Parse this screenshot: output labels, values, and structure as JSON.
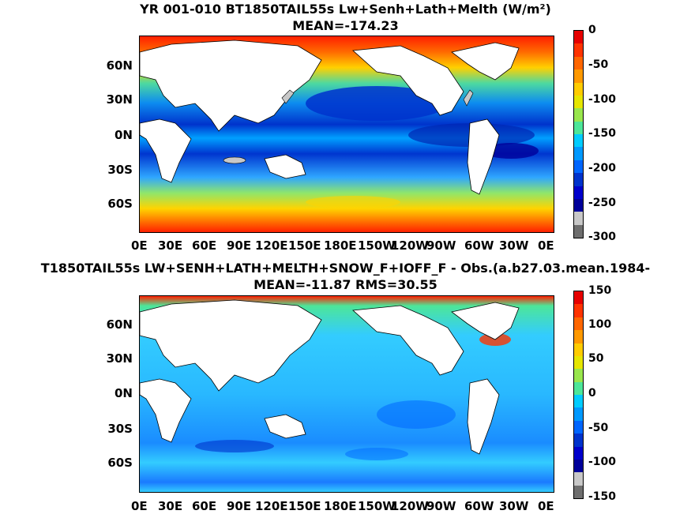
{
  "panels": [
    {
      "title_line1": "YR 001-010 BT1850TAIL55s Lw+Senh+Lath+Melth (W/m²)",
      "title_line2": "MEAN=-174.23",
      "lat_labels": [
        "60N",
        "30N",
        "0N",
        "30S",
        "60S"
      ],
      "lon_labels": [
        "0E",
        "30E",
        "60E",
        "90E",
        "120E",
        "150E",
        "180E",
        "150W",
        "120W",
        "90W",
        "60W",
        "30W",
        "0E"
      ],
      "colorbar": {
        "labels": [
          "0",
          "-50",
          "-100",
          "-150",
          "-200",
          "-250",
          "-300"
        ],
        "colors": [
          "#e60000",
          "#ff3300",
          "#ff6600",
          "#ff9900",
          "#ffcc00",
          "#e6e600",
          "#99e64d",
          "#4de699",
          "#00ccff",
          "#0099ff",
          "#0066ff",
          "#0033cc",
          "#0000cc",
          "#00009a",
          "#c8c8c8",
          "#6e6e6e"
        ]
      }
    },
    {
      "title_line1": "T1850TAIL55s LW+SENH+LATH+MELTH+SNOW_F+IOFF_F - Obs.(a.b27.03.mean.1984-",
      "title_line2": "MEAN=-11.87 RMS=30.55",
      "lat_labels": [
        "60N",
        "30N",
        "0N",
        "30S",
        "60S"
      ],
      "lon_labels": [
        "0E",
        "30E",
        "60E",
        "90E",
        "120E",
        "150E",
        "180E",
        "150W",
        "120W",
        "90W",
        "60W",
        "30W",
        "0E"
      ],
      "colorbar": {
        "labels": [
          "150",
          "100",
          "50",
          "0",
          "-50",
          "-100",
          "-150"
        ],
        "colors": [
          "#e60000",
          "#ff3300",
          "#ff6600",
          "#ff9900",
          "#ffcc00",
          "#e6e600",
          "#99e64d",
          "#4de699",
          "#00ccff",
          "#0099ff",
          "#0066ff",
          "#0033cc",
          "#0000cc",
          "#00009a",
          "#c8c8c8",
          "#6e6e6e"
        ]
      }
    }
  ]
}
